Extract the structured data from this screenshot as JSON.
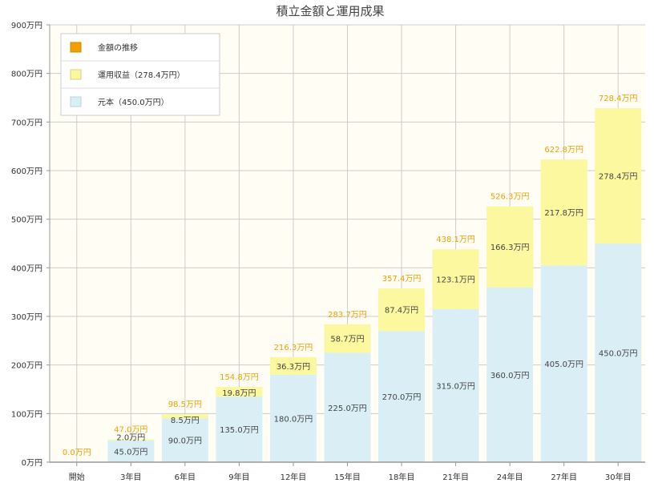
{
  "chart_data": {
    "type": "bar",
    "stacked": true,
    "title": "積立金額と運用成果",
    "categories": [
      "開始",
      "3年目",
      "6年目",
      "9年目",
      "12年目",
      "15年目",
      "18年目",
      "21年目",
      "24年目",
      "27年目",
      "30年目"
    ],
    "series": [
      {
        "name": "元本（450.0万円）",
        "color": "#daeef6",
        "values": [
          0,
          45,
          90,
          135,
          180,
          225,
          270,
          315,
          360,
          405,
          450
        ],
        "labels": [
          "",
          "45.0万円",
          "90.0万円",
          "135.0万円",
          "180.0万円",
          "225.0万円",
          "270.0万円",
          "315.0万円",
          "360.0万円",
          "405.0万円",
          "450.0万円"
        ]
      },
      {
        "name": "運用収益（278.4万円）",
        "color": "#fbf8a0",
        "values": [
          0,
          2.0,
          8.5,
          19.8,
          36.3,
          58.7,
          87.4,
          123.1,
          166.3,
          217.8,
          278.4
        ],
        "labels": [
          "",
          "2.0万円",
          "8.5万円",
          "19.8万円",
          "36.3万円",
          "58.7万円",
          "87.4万円",
          "123.1万円",
          "166.3万円",
          "217.8万円",
          "278.4万円"
        ]
      }
    ],
    "totals": {
      "name": "金額の推移",
      "color": "#f0a000",
      "values": [
        0.0,
        47.0,
        98.5,
        154.8,
        216.3,
        283.7,
        357.4,
        438.1,
        526.3,
        622.8,
        728.4
      ],
      "labels": [
        "0.0万円",
        "47.0万円",
        "98.5万円",
        "154.8万円",
        "216.3万円",
        "283.7万円",
        "357.4万円",
        "438.1万円",
        "526.3万円",
        "622.8万円",
        "728.4万円"
      ]
    },
    "ylim": [
      0,
      900
    ],
    "yticks": [
      0,
      100,
      200,
      300,
      400,
      500,
      600,
      700,
      800,
      900
    ],
    "ytick_labels": [
      "0万円",
      "100万円",
      "200万円",
      "300万円",
      "400万円",
      "500万円",
      "600万円",
      "700万円",
      "800万円",
      "900万円"
    ],
    "grid": true,
    "legend_position": "top-left",
    "background_color": "#fffdf4"
  }
}
